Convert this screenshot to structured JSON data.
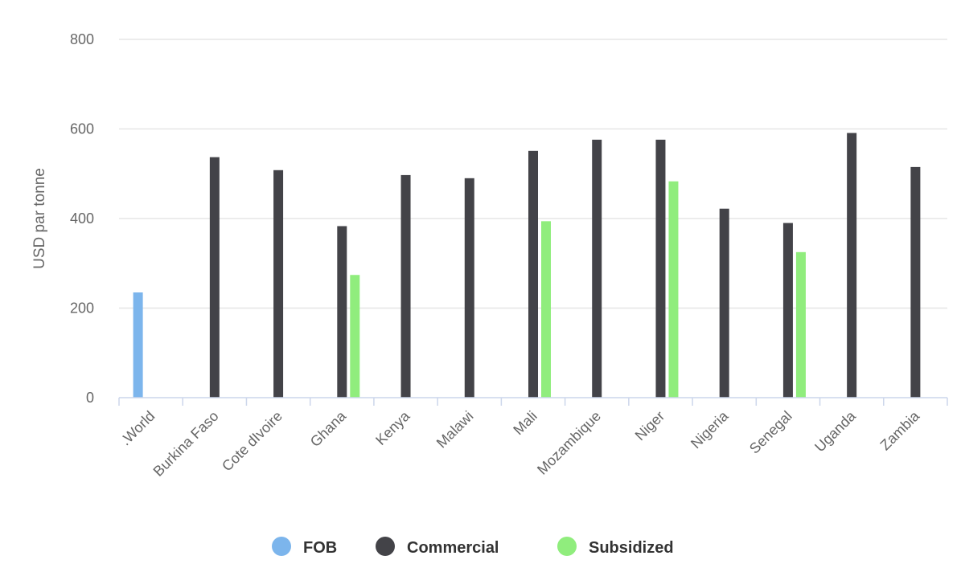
{
  "chart_data": {
    "type": "bar",
    "title": "",
    "xlabel": "",
    "ylabel": "USD par tonne",
    "ylim": [
      0,
      800
    ],
    "yticks": [
      0,
      200,
      400,
      600,
      800
    ],
    "grid": true,
    "legend_position": "bottom-center",
    "categories": [
      ".World",
      "Burkina Faso",
      "Cote dIvoire",
      "Ghana",
      "Kenya",
      "Malawi",
      "Mali",
      "Mozambique",
      "Niger",
      "Nigeria",
      "Senegal",
      "Uganda",
      "Zambia"
    ],
    "series": [
      {
        "name": "FOB",
        "color": "#7cb5ec",
        "values": [
          235,
          null,
          null,
          null,
          null,
          null,
          null,
          null,
          null,
          null,
          null,
          null,
          null
        ]
      },
      {
        "name": "Commercial",
        "color": "#434348",
        "values": [
          null,
          537,
          508,
          383,
          497,
          490,
          551,
          576,
          576,
          422,
          390,
          591,
          515
        ]
      },
      {
        "name": "Subsidized",
        "color": "#90ed7d",
        "values": [
          null,
          null,
          null,
          274,
          null,
          null,
          394,
          null,
          483,
          null,
          325,
          null,
          null
        ]
      }
    ]
  }
}
